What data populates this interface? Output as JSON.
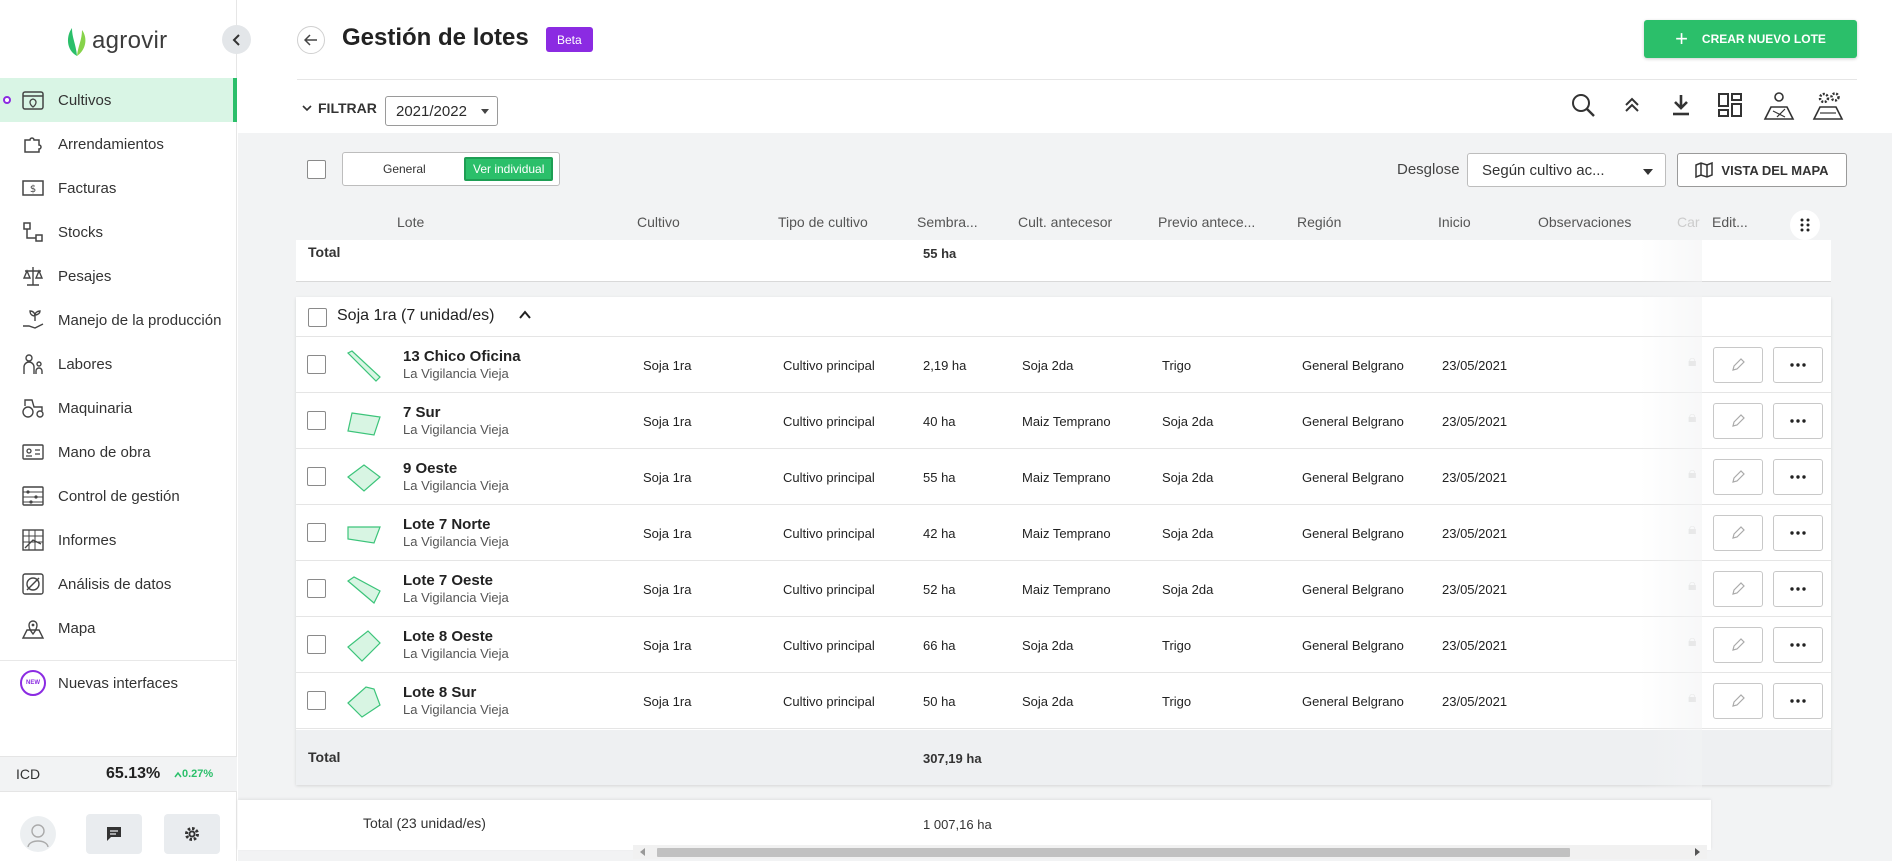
{
  "app": {
    "brand": "agrovir",
    "accent_color": "#2bbf6a",
    "badge_color": "#8b2be2"
  },
  "sidebar": {
    "items": [
      {
        "label": "Cultivos",
        "icon": "crops-icon",
        "active": true
      },
      {
        "label": "Arrendamientos",
        "icon": "puzzle-icon"
      },
      {
        "label": "Facturas",
        "icon": "invoice-icon"
      },
      {
        "label": "Stocks",
        "icon": "stock-icon"
      },
      {
        "label": "Pesajes",
        "icon": "scale-icon"
      },
      {
        "label": "Manejo de la producción",
        "icon": "plant-hand-icon"
      },
      {
        "label": "Labores",
        "icon": "workers-icon"
      },
      {
        "label": "Maquinaria",
        "icon": "tractor-icon"
      },
      {
        "label": "Mano de obra",
        "icon": "id-card-icon"
      },
      {
        "label": "Control de gestión",
        "icon": "abacus-icon"
      },
      {
        "label": "Informes",
        "icon": "report-icon"
      },
      {
        "label": "Análisis de datos",
        "icon": "analytics-icon"
      },
      {
        "label": "Mapa",
        "icon": "map-pin-icon"
      }
    ],
    "new_interfaces": {
      "label": "Nuevas interfaces",
      "badge": "NEW"
    },
    "icd": {
      "label": "ICD",
      "value": "65.13%",
      "delta": "0.27%"
    }
  },
  "header": {
    "title": "Gestión de lotes",
    "badge": "Beta",
    "create_button": "CREAR NUEVO LOTE",
    "filter_label": "FILTRAR",
    "season": "2021/2022"
  },
  "toolbar": {
    "view_general": "General",
    "view_individual": "Ver individual",
    "desglose_label": "Desglose",
    "desglose_value": "Según cultivo ac...",
    "map_button": "VISTA DEL MAPA"
  },
  "columns": [
    "Lote",
    "Cultivo",
    "Tipo de cultivo",
    "Sembra...",
    "Cult. antecesor",
    "Previo antece...",
    "Región",
    "Inicio",
    "Observaciones",
    "Car",
    "Edit..."
  ],
  "previous_group": {
    "total_label": "Total",
    "total_value": "55 ha"
  },
  "group": {
    "title": "Soja 1ra (7 unidad/es)",
    "rows": [
      {
        "name": "13 Chico Oficina",
        "farm": "La Vigilancia Vieja",
        "cultivo": "Soja 1ra",
        "tipo": "Cultivo principal",
        "sembrado": "2,19 ha",
        "antecesor": "Soja 2da",
        "previo": "Trigo",
        "region": "General Belgrano",
        "inicio": "23/05/2021"
      },
      {
        "name": "7 Sur",
        "farm": "La Vigilancia Vieja",
        "cultivo": "Soja 1ra",
        "tipo": "Cultivo principal",
        "sembrado": "40 ha",
        "antecesor": "Maiz Temprano",
        "previo": "Soja 2da",
        "region": "General Belgrano",
        "inicio": "23/05/2021"
      },
      {
        "name": "9 Oeste",
        "farm": "La Vigilancia Vieja",
        "cultivo": "Soja 1ra",
        "tipo": "Cultivo principal",
        "sembrado": "55 ha",
        "antecesor": "Maiz Temprano",
        "previo": "Soja 2da",
        "region": "General Belgrano",
        "inicio": "23/05/2021"
      },
      {
        "name": "Lote 7 Norte",
        "farm": "La Vigilancia Vieja",
        "cultivo": "Soja 1ra",
        "tipo": "Cultivo principal",
        "sembrado": "42 ha",
        "antecesor": "Maiz Temprano",
        "previo": "Soja 2da",
        "region": "General Belgrano",
        "inicio": "23/05/2021"
      },
      {
        "name": "Lote 7 Oeste",
        "farm": "La Vigilancia Vieja",
        "cultivo": "Soja 1ra",
        "tipo": "Cultivo principal",
        "sembrado": "52 ha",
        "antecesor": "Maiz Temprano",
        "previo": "Soja 2da",
        "region": "General Belgrano",
        "inicio": "23/05/2021"
      },
      {
        "name": "Lote 8 Oeste",
        "farm": "La Vigilancia Vieja",
        "cultivo": "Soja 1ra",
        "tipo": "Cultivo principal",
        "sembrado": "66 ha",
        "antecesor": "Soja 2da",
        "previo": "Trigo",
        "region": "General Belgrano",
        "inicio": "23/05/2021"
      },
      {
        "name": "Lote 8 Sur",
        "farm": "La Vigilancia Vieja",
        "cultivo": "Soja 1ra",
        "tipo": "Cultivo principal",
        "sembrado": "50 ha",
        "antecesor": "Soja 2da",
        "previo": "Trigo",
        "region": "General Belgrano",
        "inicio": "23/05/2021"
      }
    ],
    "total_label": "Total",
    "total_value": "307,19 ha"
  },
  "grand_total": {
    "label": "Total (23 unidad/es)",
    "value": "1 007,16 ha"
  }
}
